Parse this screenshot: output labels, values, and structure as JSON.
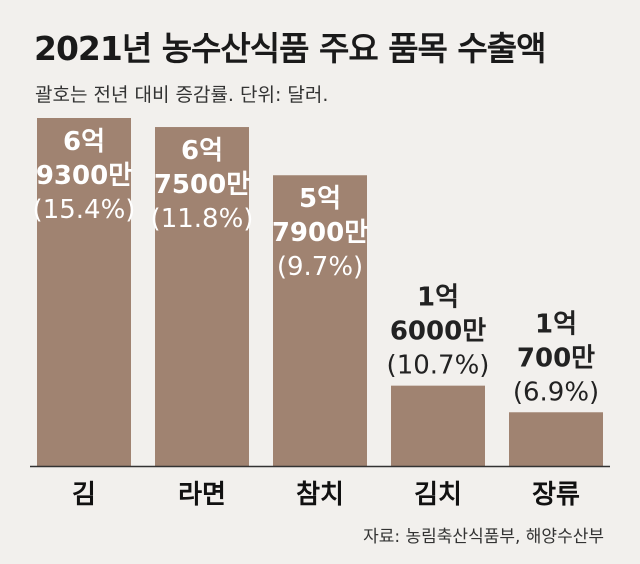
{
  "header": {
    "title": "2021년 농수산식품 주요 품목 수출액",
    "subtitle": "괄호는 전년 대비 증감률. 단위: 달러."
  },
  "source": "자료: 농림축산식품부, 해양수산부",
  "colors": {
    "bar": "#a08371",
    "label_on_bar": "#ffffff",
    "label_above_bar": "#222222",
    "axis": "#333333",
    "background": "#f2f0ed"
  },
  "chart_data": {
    "type": "bar",
    "title": "2021년 농수산식품 주요 품목 수출액",
    "subtitle": "괄호는 전년 대비 증감률. 단위: 달러.",
    "categories": [
      "김",
      "라면",
      "참치",
      "김치",
      "장류"
    ],
    "values": [
      693000000,
      675000000,
      579000000,
      160000000,
      107000000
    ],
    "value_labels": [
      [
        "6억",
        "9300만",
        "(15.4%)"
      ],
      [
        "6억",
        "7500만",
        "(11.8%)"
      ],
      [
        "5억",
        "7900만",
        "(9.7%)"
      ],
      [
        "1억",
        "6000만",
        "(10.7%)"
      ],
      [
        "1억",
        "700만",
        "(6.9%)"
      ]
    ],
    "growth_pct": [
      15.4,
      11.8,
      9.7,
      10.7,
      6.9
    ],
    "xlabel": "",
    "ylabel": "",
    "grid": false,
    "legend": "none"
  }
}
